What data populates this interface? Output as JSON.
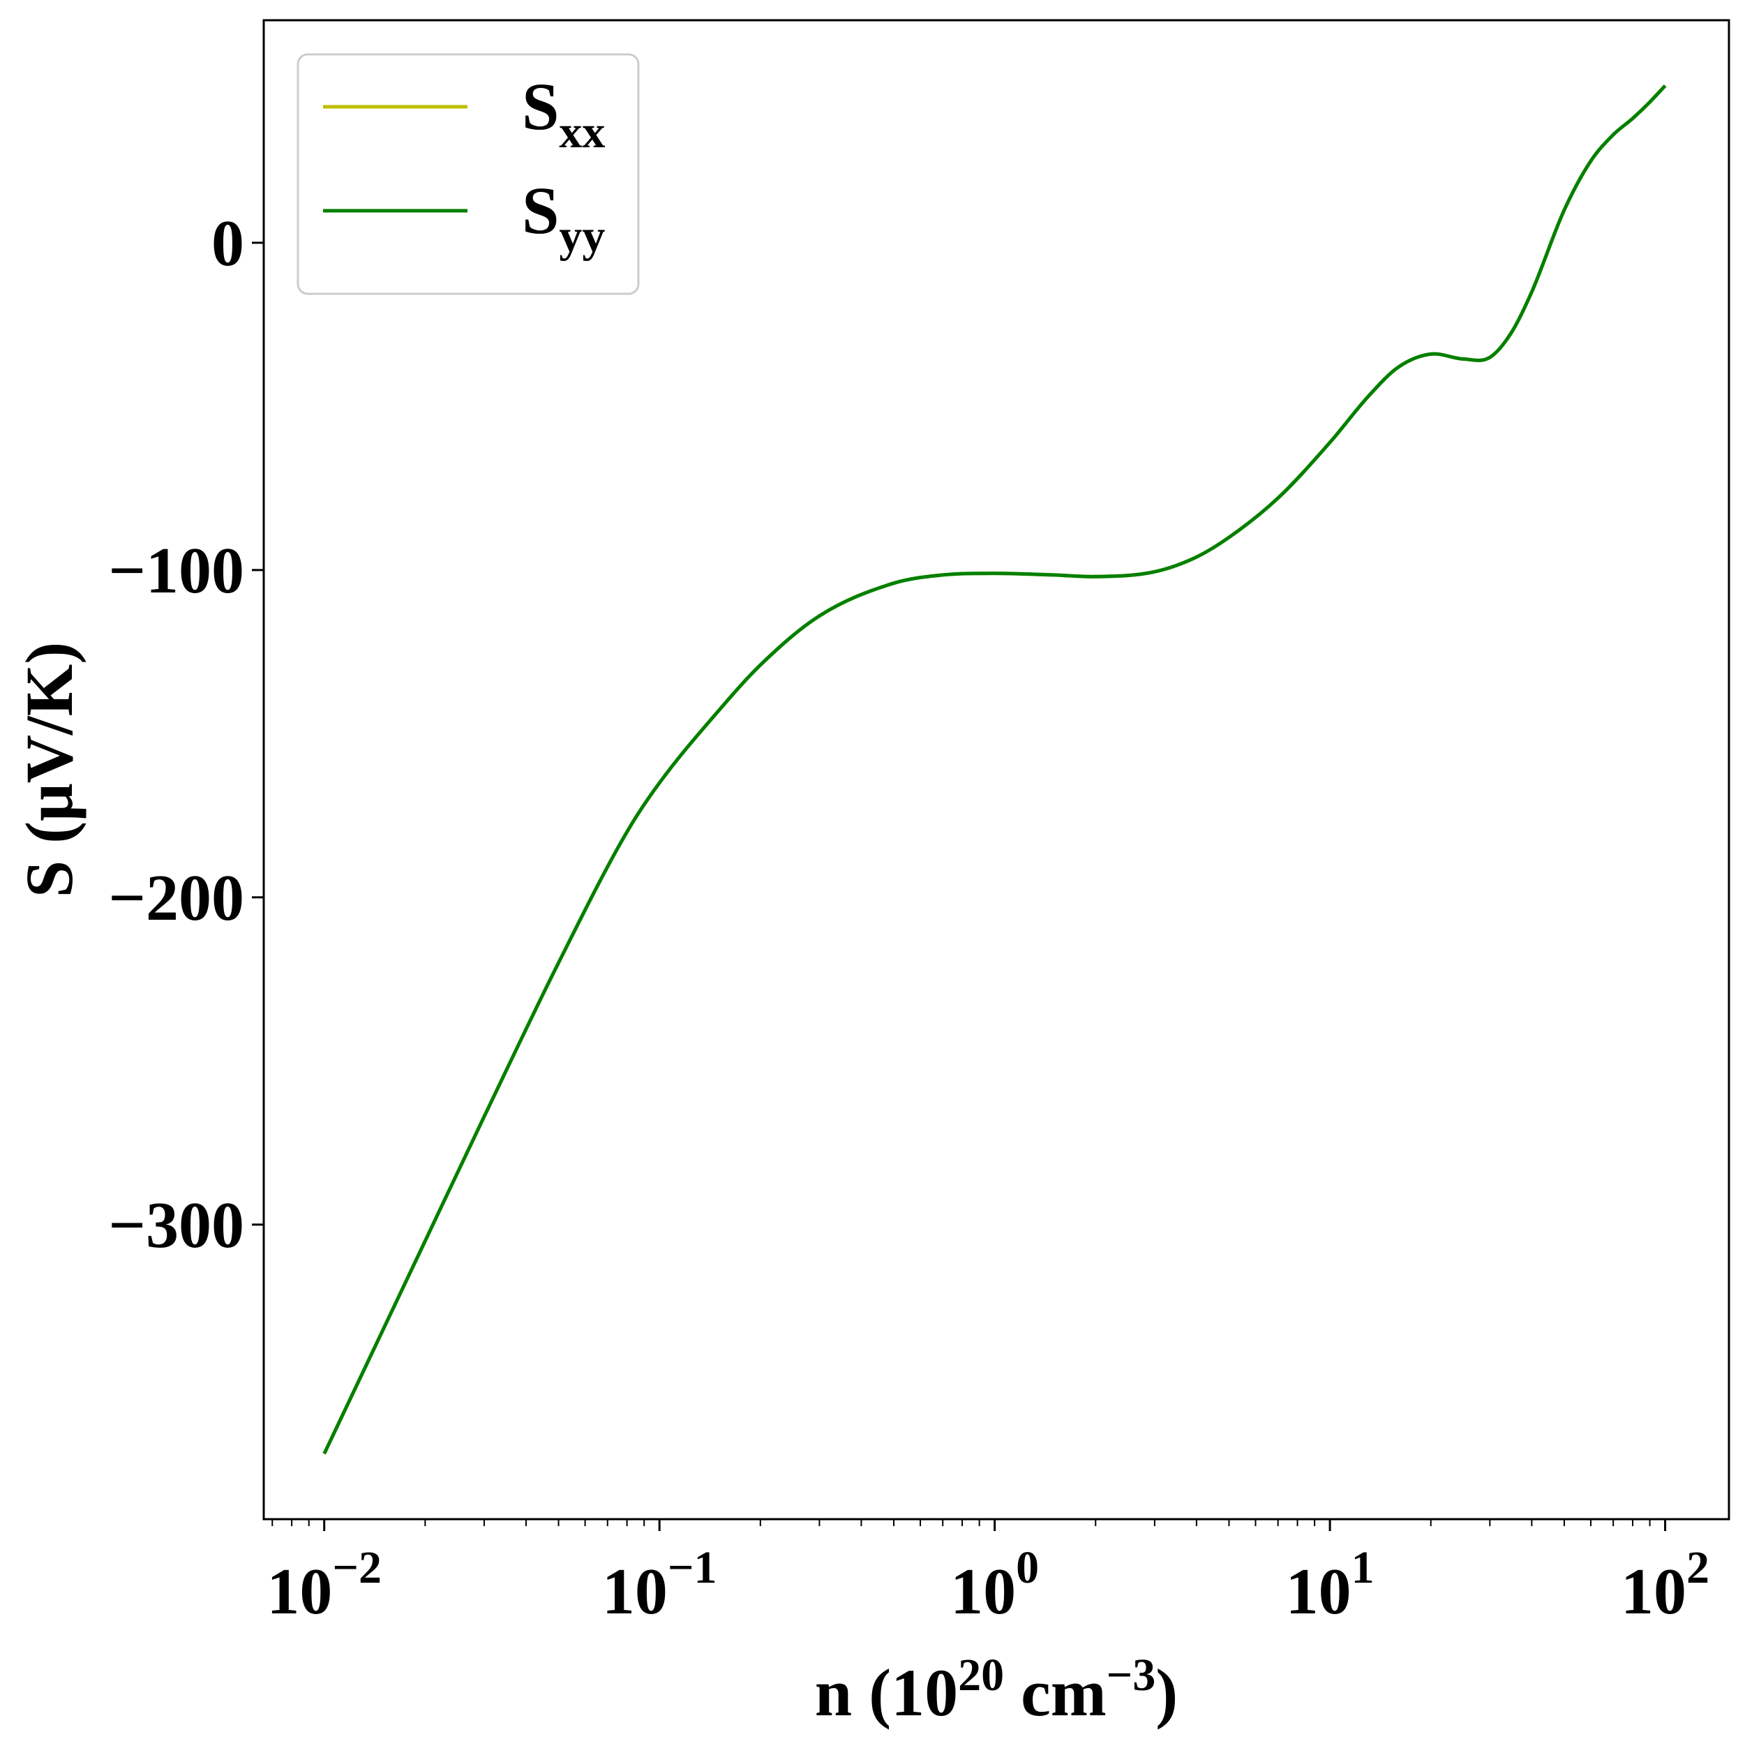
{
  "chart_data": {
    "type": "line",
    "xscale": "log",
    "xlim": [
      0.0066,
      155
    ],
    "ylim": [
      -390,
      68
    ],
    "xticks": [
      {
        "value": 0.01,
        "base": "10",
        "exp": "−2"
      },
      {
        "value": 0.1,
        "base": "10",
        "exp": "−1"
      },
      {
        "value": 1,
        "base": "10",
        "exp": "0"
      },
      {
        "value": 10,
        "base": "10",
        "exp": "1"
      },
      {
        "value": 100,
        "base": "10",
        "exp": "2"
      }
    ],
    "yticks": [
      {
        "value": 0,
        "label": "0"
      },
      {
        "value": -100,
        "label": "−100"
      },
      {
        "value": -200,
        "label": "−200"
      },
      {
        "value": -300,
        "label": "−300"
      }
    ],
    "xlabel": {
      "prefix": "n (10",
      "exp1": "20",
      "mid": " cm",
      "exp2": "−3",
      "suffix": ")"
    },
    "ylabel": "S (μV/K)",
    "grid": false,
    "legend_position": "top-left",
    "series": [
      {
        "name": "S",
        "subscript": "xx",
        "color": "#bfbf00",
        "x": [
          0.01,
          0.02,
          0.03,
          0.05,
          0.08,
          0.1,
          0.15,
          0.2,
          0.3,
          0.5,
          0.7,
          1.0,
          1.5,
          2.0,
          3.0,
          4.0,
          5.0,
          7.0,
          10,
          13,
          16,
          20,
          25,
          30,
          35,
          40,
          50,
          60,
          70,
          80,
          90,
          100
        ],
        "y": [
          -370,
          -305,
          -267,
          -220,
          -180,
          -165,
          -143,
          -129,
          -114,
          -104,
          -101.5,
          -101,
          -101.5,
          -102,
          -100.5,
          -96,
          -90,
          -78,
          -61,
          -47,
          -38,
          -34,
          -35.5,
          -35,
          -27,
          -15,
          10,
          25,
          33,
          38,
          43,
          48
        ]
      },
      {
        "name": "S",
        "subscript": "yy",
        "color": "#008000",
        "x": [
          0.01,
          0.02,
          0.03,
          0.05,
          0.08,
          0.1,
          0.15,
          0.2,
          0.3,
          0.5,
          0.7,
          1.0,
          1.5,
          2.0,
          3.0,
          4.0,
          5.0,
          7.0,
          10,
          13,
          16,
          20,
          25,
          30,
          35,
          40,
          50,
          60,
          70,
          80,
          90,
          100
        ],
        "y": [
          -370,
          -305,
          -267,
          -220,
          -180,
          -165,
          -143,
          -129,
          -114,
          -104,
          -101.5,
          -101,
          -101.5,
          -102,
          -100.5,
          -96,
          -90,
          -78,
          -61,
          -47,
          -38,
          -34,
          -35.5,
          -35,
          -27,
          -15,
          10,
          25,
          33,
          38,
          43,
          48
        ]
      }
    ]
  }
}
